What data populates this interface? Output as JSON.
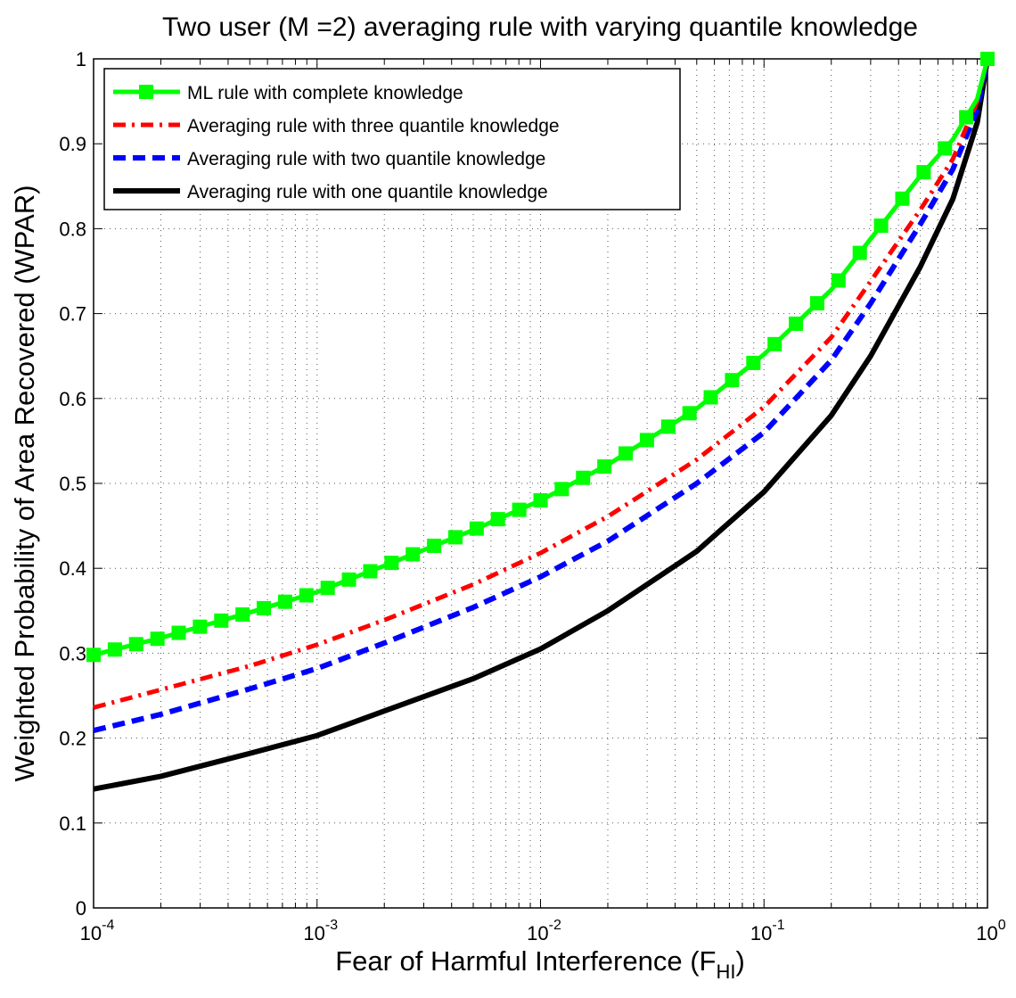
{
  "chart_data": {
    "type": "line",
    "title": "Two user (M =2) averaging rule with varying quantile knowledge",
    "xlabel": {
      "main": "Fear of Harmful Interference (F",
      "sub": "HI",
      "close": ")"
    },
    "ylabel": "Weighted Probability of Area Recovered (WPAR)",
    "xscale": "log",
    "xlim": [
      0.0001,
      1
    ],
    "ylim": [
      0,
      1
    ],
    "x_ticks": [
      {
        "base": "10",
        "exp": "-4"
      },
      {
        "base": "10",
        "exp": "-3"
      },
      {
        "base": "10",
        "exp": "-2"
      },
      {
        "base": "10",
        "exp": "-1"
      },
      {
        "base": "10",
        "exp": "0"
      }
    ],
    "y_ticks": [
      "0",
      "0.1",
      "0.2",
      "0.3",
      "0.4",
      "0.5",
      "0.6",
      "0.7",
      "0.8",
      "0.9",
      "1"
    ],
    "grid": true,
    "legend_position": "top-left",
    "series": [
      {
        "name": "ML rule with complete knowledge",
        "color": "#00ff00",
        "style": "solid-square-markers",
        "x": [
          0.0001,
          0.0002,
          0.0005,
          0.001,
          0.002,
          0.005,
          0.01,
          0.02,
          0.05,
          0.1,
          0.2,
          0.3,
          0.5,
          0.7,
          0.9,
          1
        ],
        "y": [
          0.298,
          0.318,
          0.348,
          0.372,
          0.403,
          0.445,
          0.48,
          0.522,
          0.588,
          0.652,
          0.728,
          0.788,
          0.862,
          0.905,
          0.953,
          1.0
        ]
      },
      {
        "name": "Averaging rule with three quantile knowledge",
        "color": "#ff0000",
        "style": "dash-dot",
        "x": [
          0.0001,
          0.0002,
          0.0005,
          0.001,
          0.002,
          0.005,
          0.01,
          0.02,
          0.05,
          0.1,
          0.2,
          0.3,
          0.5,
          0.7,
          0.9,
          1
        ],
        "y": [
          0.236,
          0.257,
          0.285,
          0.31,
          0.339,
          0.381,
          0.418,
          0.461,
          0.528,
          0.59,
          0.672,
          0.738,
          0.822,
          0.882,
          0.95,
          1.0
        ]
      },
      {
        "name": "Averaging rule with two quantile knowledge",
        "color": "#0000ff",
        "style": "dashed",
        "x": [
          0.0001,
          0.0002,
          0.0005,
          0.001,
          0.002,
          0.005,
          0.01,
          0.02,
          0.05,
          0.1,
          0.2,
          0.3,
          0.5,
          0.7,
          0.9,
          1
        ],
        "y": [
          0.209,
          0.228,
          0.258,
          0.282,
          0.312,
          0.354,
          0.39,
          0.432,
          0.5,
          0.56,
          0.645,
          0.712,
          0.805,
          0.87,
          0.94,
          1.0
        ]
      },
      {
        "name": "Averaging rule with one quantile knowledge",
        "color": "#000000",
        "style": "solid-thick",
        "x": [
          0.0001,
          0.0002,
          0.0005,
          0.001,
          0.002,
          0.005,
          0.01,
          0.02,
          0.05,
          0.1,
          0.2,
          0.3,
          0.5,
          0.7,
          0.9,
          1
        ],
        "y": [
          0.14,
          0.155,
          0.182,
          0.203,
          0.232,
          0.27,
          0.305,
          0.35,
          0.42,
          0.49,
          0.58,
          0.65,
          0.755,
          0.835,
          0.925,
          1.0
        ]
      }
    ]
  }
}
